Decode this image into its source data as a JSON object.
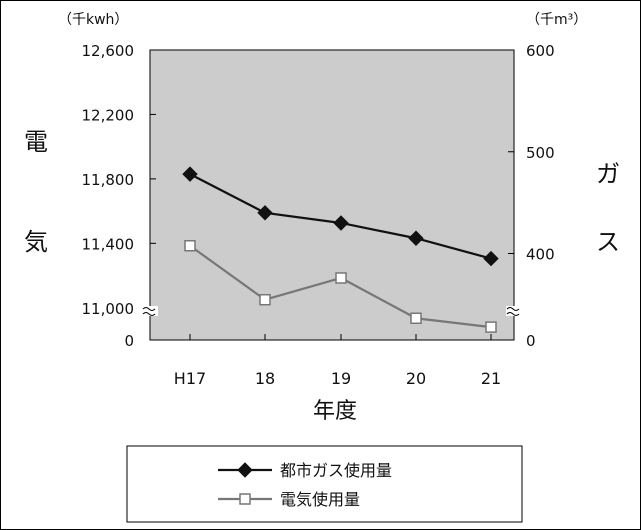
{
  "chart_data": {
    "type": "line",
    "title": "",
    "xlabel": "年度",
    "categories": [
      "H17",
      "18",
      "19",
      "20",
      "21"
    ],
    "left_axis": {
      "label": "電気",
      "unit": "（千kwh）",
      "range": [
        10800,
        12600
      ],
      "break_below": 11000,
      "ticks": [
        "12,600",
        "12,200",
        "11,800",
        "11,400",
        "11,000"
      ],
      "tick_values": [
        12600,
        12200,
        11800,
        11400,
        11000
      ],
      "zero_label": "0"
    },
    "right_axis": {
      "label": "ガス",
      "unit": "（千m³）",
      "range": [
        315,
        600
      ],
      "break_below": 315,
      "ticks": [
        "600",
        "500",
        "400"
      ],
      "tick_values": [
        600,
        500,
        400
      ],
      "zero_label": "0"
    },
    "series": [
      {
        "name": "都市ガス使用量",
        "axis": "right",
        "marker": "diamond",
        "color": "#111111",
        "values": [
          478,
          440,
          430,
          415,
          395
        ]
      },
      {
        "name": "電気使用量",
        "axis": "left",
        "marker": "square-open",
        "color": "#777777",
        "values": [
          11385,
          11050,
          11185,
          10935,
          10880
        ]
      }
    ],
    "plot_background": "#cccccc",
    "grid": false,
    "legend_position": "bottom-center"
  }
}
